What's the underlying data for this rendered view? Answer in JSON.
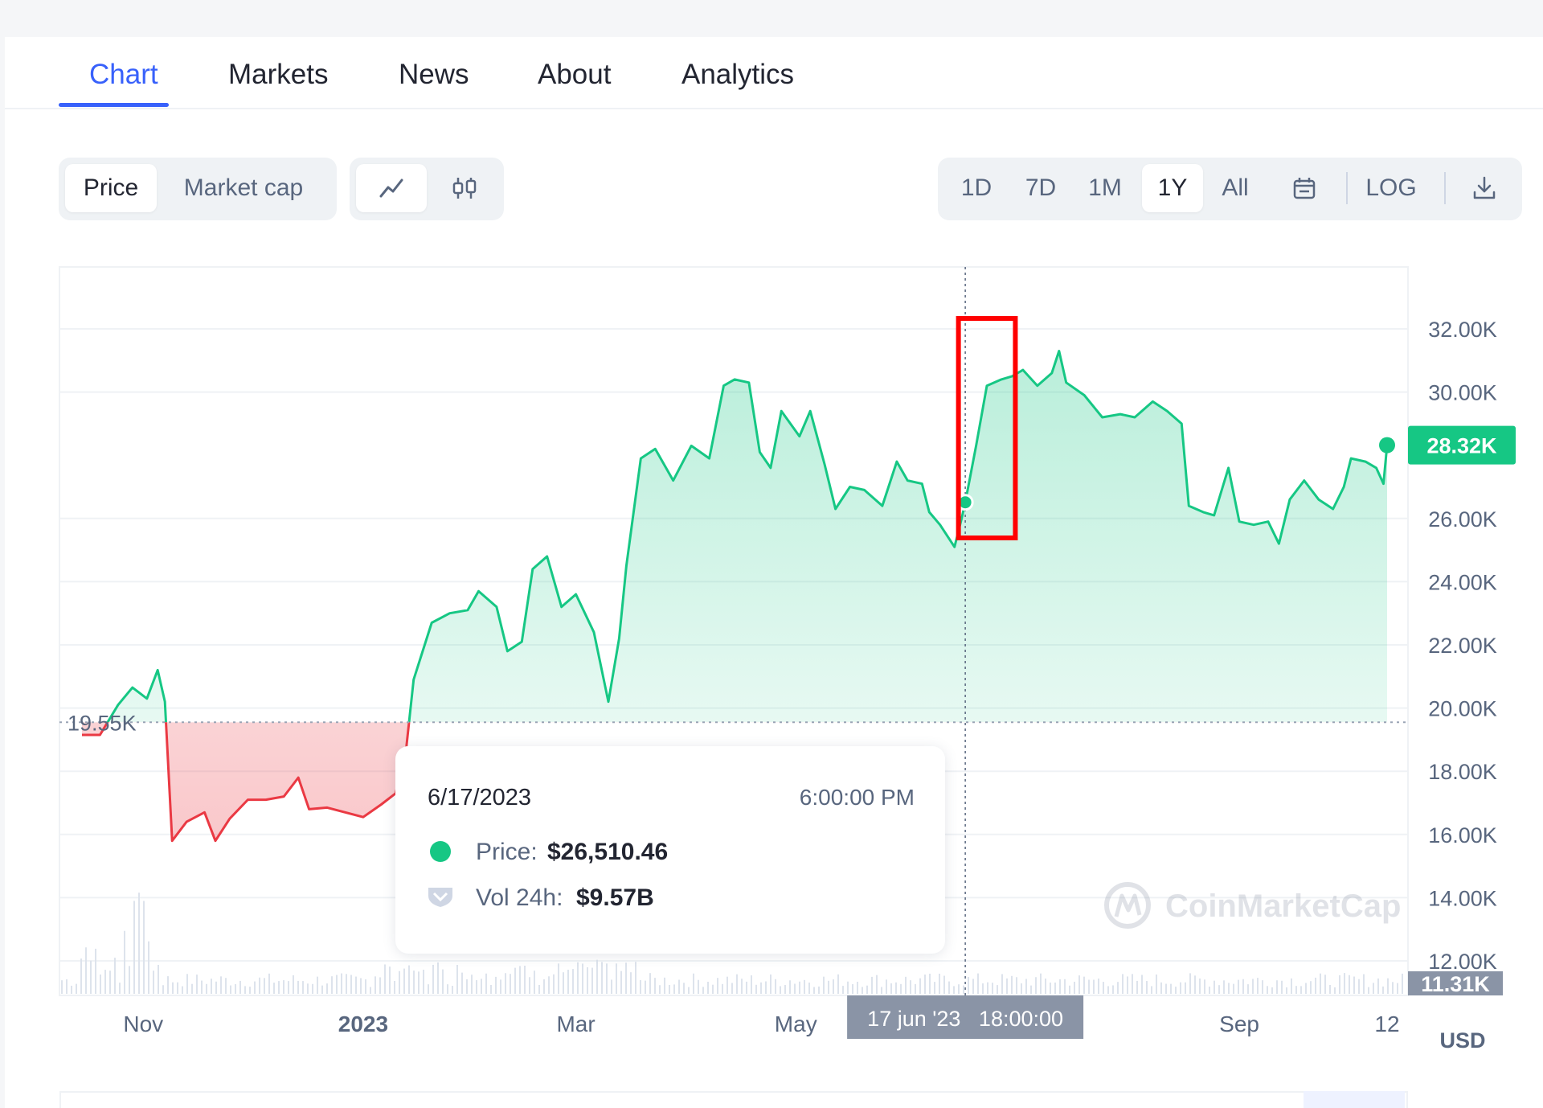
{
  "tabs": [
    {
      "label": "Chart",
      "active": true
    },
    {
      "label": "Markets"
    },
    {
      "label": "News"
    },
    {
      "label": "About"
    },
    {
      "label": "Analytics"
    }
  ],
  "metric_toggle": {
    "price": "Price",
    "market_cap": "Market cap",
    "selected": "Price"
  },
  "chart_style": {
    "line_icon": "line-chart-icon",
    "candle_icon": "candlestick-icon",
    "selected": "line"
  },
  "ranges": {
    "options": [
      "1D",
      "7D",
      "1M",
      "1Y",
      "All"
    ],
    "selected": "1Y"
  },
  "tools": {
    "calendar_icon": "calendar-icon",
    "log": "LOG",
    "download_icon": "download-icon"
  },
  "colors": {
    "up": "#16c784",
    "down": "#ea3943",
    "accent": "#3861fb",
    "highlight_box": "#ff0000"
  },
  "watermark": "CoinMarketCap",
  "chart_data": {
    "type": "area",
    "currency": "USD",
    "baseline_value": 19550,
    "baseline_label": "19.55K",
    "last_value_label": "28.32K",
    "volume_scale_label": "11.31K",
    "ylim": [
      12000,
      33000
    ],
    "y_ticks": [
      "32.00K",
      "30.00K",
      "26.00K",
      "24.00K",
      "22.00K",
      "20.00K",
      "18.00K",
      "16.00K",
      "14.00K",
      "12.00K"
    ],
    "y_tick_values": [
      32000,
      30000,
      26000,
      24000,
      22000,
      20000,
      18000,
      16000,
      14000,
      12000
    ],
    "x_ticks": [
      "Nov",
      "2023",
      "Mar",
      "May",
      "Sep",
      "12"
    ],
    "x_tick_dates": [
      "2022-11-01",
      "2023-01-01",
      "2023-03-01",
      "2023-05-01",
      "2023-09-01",
      "2023-10-12"
    ],
    "x_range": [
      "2022-10-15",
      "2023-10-12"
    ],
    "crosshair": {
      "label": "17 jun '23   18:00:00",
      "date": "2023-06-17",
      "value": 26510.46
    },
    "highlight_range": [
      "2023-06-16",
      "2023-06-30"
    ],
    "price_series": [
      [
        "2022-10-15",
        19150
      ],
      [
        "2022-10-20",
        19150
      ],
      [
        "2022-10-25",
        20100
      ],
      [
        "2022-10-29",
        20650
      ],
      [
        "2022-11-02",
        20300
      ],
      [
        "2022-11-05",
        21200
      ],
      [
        "2022-11-07",
        20200
      ],
      [
        "2022-11-09",
        15800
      ],
      [
        "2022-11-13",
        16400
      ],
      [
        "2022-11-18",
        16700
      ],
      [
        "2022-11-21",
        15800
      ],
      [
        "2022-11-25",
        16500
      ],
      [
        "2022-11-30",
        17100
      ],
      [
        "2022-12-05",
        17100
      ],
      [
        "2022-12-10",
        17200
      ],
      [
        "2022-12-14",
        17800
      ],
      [
        "2022-12-17",
        16800
      ],
      [
        "2022-12-22",
        16850
      ],
      [
        "2022-12-27",
        16700
      ],
      [
        "2023-01-01",
        16550
      ],
      [
        "2023-01-06",
        16950
      ],
      [
        "2023-01-10",
        17300
      ],
      [
        "2023-01-13",
        18800
      ],
      [
        "2023-01-15",
        20900
      ],
      [
        "2023-01-20",
        22700
      ],
      [
        "2023-01-25",
        23000
      ],
      [
        "2023-01-30",
        23100
      ],
      [
        "2023-02-02",
        23700
      ],
      [
        "2023-02-07",
        23200
      ],
      [
        "2023-02-10",
        21800
      ],
      [
        "2023-02-14",
        22100
      ],
      [
        "2023-02-17",
        24400
      ],
      [
        "2023-02-21",
        24800
      ],
      [
        "2023-02-25",
        23200
      ],
      [
        "2023-03-01",
        23600
      ],
      [
        "2023-03-06",
        22400
      ],
      [
        "2023-03-10",
        20200
      ],
      [
        "2023-03-13",
        22200
      ],
      [
        "2023-03-15",
        24500
      ],
      [
        "2023-03-19",
        27900
      ],
      [
        "2023-03-23",
        28200
      ],
      [
        "2023-03-28",
        27200
      ],
      [
        "2023-04-02",
        28300
      ],
      [
        "2023-04-07",
        27900
      ],
      [
        "2023-04-11",
        30200
      ],
      [
        "2023-04-14",
        30400
      ],
      [
        "2023-04-18",
        30300
      ],
      [
        "2023-04-21",
        28100
      ],
      [
        "2023-04-24",
        27600
      ],
      [
        "2023-04-27",
        29400
      ],
      [
        "2023-05-02",
        28600
      ],
      [
        "2023-05-05",
        29400
      ],
      [
        "2023-05-09",
        27700
      ],
      [
        "2023-05-12",
        26300
      ],
      [
        "2023-05-16",
        27000
      ],
      [
        "2023-05-20",
        26900
      ],
      [
        "2023-05-25",
        26400
      ],
      [
        "2023-05-29",
        27800
      ],
      [
        "2023-06-01",
        27200
      ],
      [
        "2023-06-05",
        27100
      ],
      [
        "2023-06-07",
        26200
      ],
      [
        "2023-06-10",
        25800
      ],
      [
        "2023-06-14",
        25100
      ],
      [
        "2023-06-16",
        26000
      ],
      [
        "2023-06-17",
        26510
      ],
      [
        "2023-06-20",
        28300
      ],
      [
        "2023-06-23",
        30200
      ],
      [
        "2023-06-27",
        30400
      ],
      [
        "2023-06-30",
        30500
      ],
      [
        "2023-07-03",
        30700
      ],
      [
        "2023-07-07",
        30200
      ],
      [
        "2023-07-11",
        30600
      ],
      [
        "2023-07-13",
        31300
      ],
      [
        "2023-07-15",
        30300
      ],
      [
        "2023-07-20",
        29900
      ],
      [
        "2023-07-25",
        29200
      ],
      [
        "2023-07-30",
        29300
      ],
      [
        "2023-08-03",
        29200
      ],
      [
        "2023-08-08",
        29700
      ],
      [
        "2023-08-12",
        29400
      ],
      [
        "2023-08-16",
        29000
      ],
      [
        "2023-08-18",
        26400
      ],
      [
        "2023-08-22",
        26200
      ],
      [
        "2023-08-25",
        26100
      ],
      [
        "2023-08-29",
        27600
      ],
      [
        "2023-09-01",
        25900
      ],
      [
        "2023-09-05",
        25800
      ],
      [
        "2023-09-09",
        25900
      ],
      [
        "2023-09-12",
        25200
      ],
      [
        "2023-09-15",
        26600
      ],
      [
        "2023-09-19",
        27200
      ],
      [
        "2023-09-23",
        26600
      ],
      [
        "2023-09-27",
        26300
      ],
      [
        "2023-09-30",
        27000
      ],
      [
        "2023-10-02",
        27900
      ],
      [
        "2023-10-06",
        27800
      ],
      [
        "2023-10-09",
        27600
      ],
      [
        "2023-10-11",
        27100
      ],
      [
        "2023-10-12",
        28320
      ]
    ]
  },
  "tooltip": {
    "date": "6/17/2023",
    "time": "6:00:00 PM",
    "price_label": "Price:",
    "price_value": "$26,510.46",
    "vol_label": "Vol 24h:",
    "vol_value": "$9.57B"
  }
}
